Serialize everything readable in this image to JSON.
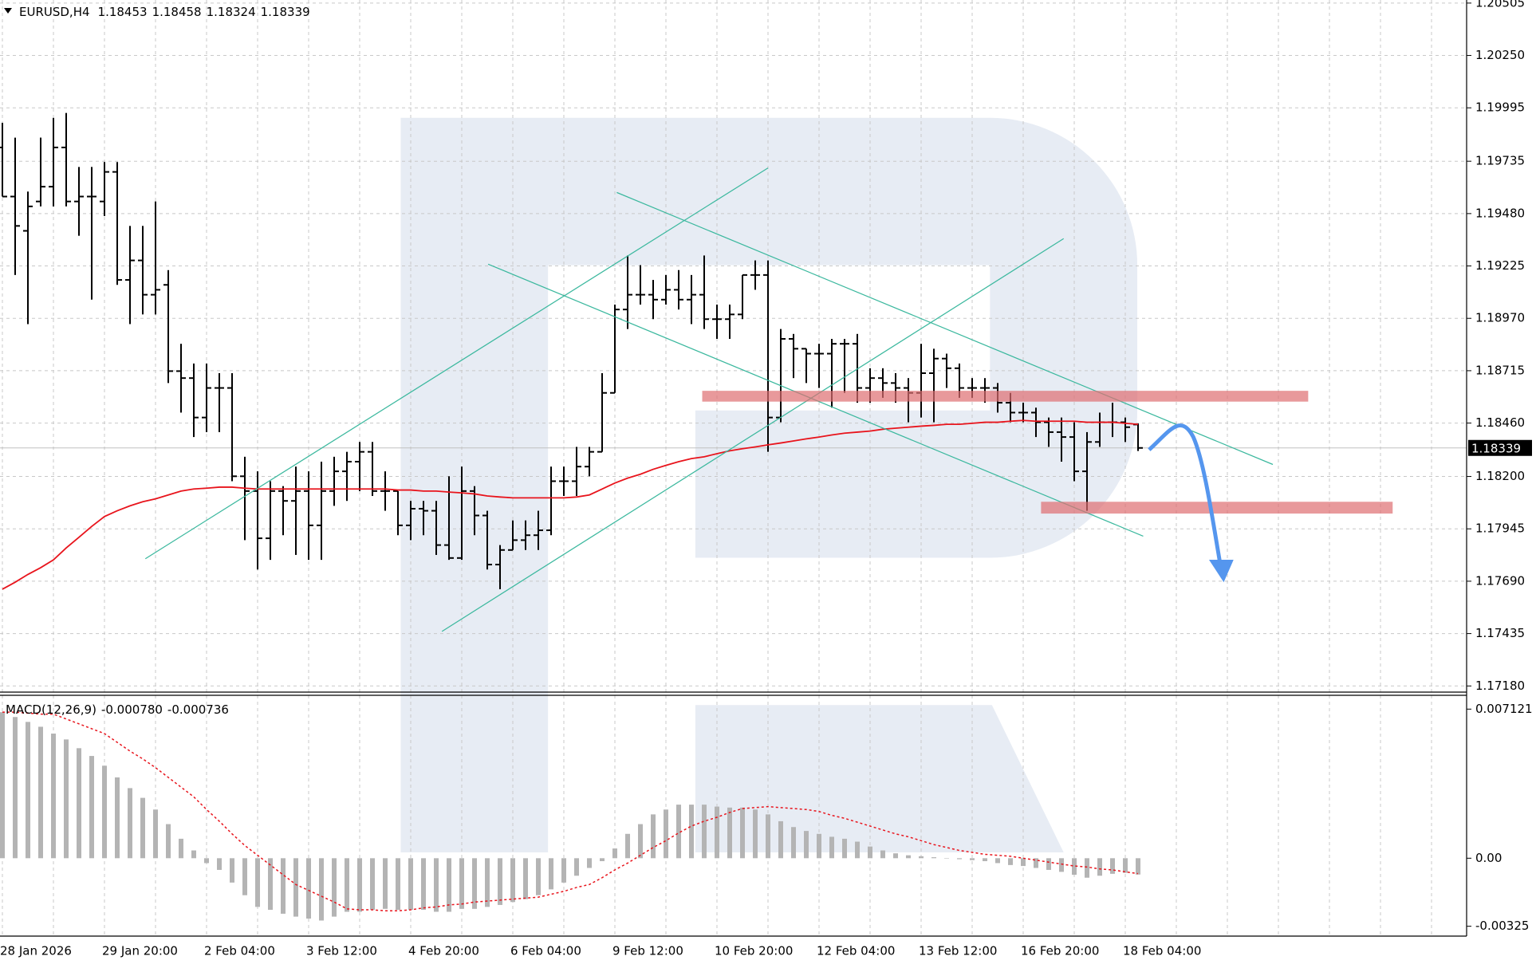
{
  "chart_data": [
    {
      "type": "ohlc",
      "title": "EURUSD,H4",
      "categories": [
        "28 Jan 2026",
        null,
        null,
        null,
        null,
        null,
        null,
        null,
        "29 Jan 20:00",
        null,
        null,
        null,
        null,
        null,
        null,
        null,
        "2 Feb 04:00",
        null,
        null,
        null,
        null,
        null,
        null,
        null,
        "3 Feb 12:00",
        null,
        null,
        null,
        null,
        null,
        null,
        null,
        "4 Feb 20:00",
        null,
        null,
        null,
        null,
        null,
        null,
        null,
        "6 Feb 04:00",
        null,
        null,
        null,
        null,
        null,
        null,
        null,
        "9 Feb 12:00",
        null,
        null,
        null,
        null,
        null,
        null,
        null,
        "10 Feb 20:00",
        null,
        null,
        null,
        null,
        null,
        null,
        null,
        "12 Feb 04:00",
        null,
        null,
        null,
        null,
        null,
        null,
        null,
        "13 Feb 12:00",
        null,
        null,
        null,
        null,
        null,
        null,
        null,
        "16 Feb 20:00",
        null,
        null,
        null,
        null,
        null,
        null,
        null,
        "18 Feb 04:00",
        null
      ],
      "open": [
        1.19802,
        1.19563,
        1.19396,
        1.19539,
        1.19611,
        1.19802,
        1.19539,
        1.19563,
        1.19539,
        1.19683,
        1.19157,
        1.19252,
        1.19085,
        1.19133,
        1.18713,
        1.18679,
        1.18487,
        1.18631,
        1.18631,
        1.18201,
        1.18129,
        1.17899,
        1.18129,
        1.18081,
        1.18129,
        1.17962,
        1.18129,
        1.18225,
        1.18272,
        1.1832,
        1.18129,
        1.18129,
        1.17962,
        1.18043,
        1.18033,
        1.17866,
        1.17803,
        1.18129,
        1.1801,
        1.17771,
        1.17842,
        1.1789,
        1.17914,
        1.17938,
        1.18177,
        1.18177,
        1.18248,
        1.1832,
        1.18607,
        1.19013,
        1.19085,
        1.19085,
        1.19061,
        1.19109,
        1.19061,
        1.19085,
        1.18966,
        1.18966,
        1.18989,
        1.19181,
        1.19181,
        1.18487,
        1.1887,
        1.18822,
        1.18798,
        1.18798,
        1.18846,
        1.18846,
        1.18631,
        1.18679,
        1.18655,
        1.18631,
        1.18607,
        1.18703,
        1.18774,
        1.18727,
        1.18631,
        1.18631,
        1.18631,
        1.18559,
        1.18511,
        1.18511,
        1.18464,
        1.18416,
        1.18392,
        1.18225,
        1.18368,
        1.18464,
        1.18464,
        1.18453
      ],
      "high": [
        1.19922,
        1.1985,
        1.19587,
        1.1985,
        1.19946,
        1.1997,
        1.19707,
        1.19707,
        1.19731,
        1.19731,
        1.1942,
        1.1942,
        1.19539,
        1.19205,
        1.18846,
        1.1875,
        1.1875,
        1.18703,
        1.18703,
        1.18296,
        1.18225,
        1.18177,
        1.18153,
        1.18248,
        1.18225,
        1.18272,
        1.18296,
        1.1832,
        1.18368,
        1.18368,
        1.18225,
        1.18129,
        1.18081,
        1.18081,
        1.18081,
        1.18201,
        1.18248,
        1.18153,
        1.18033,
        1.17866,
        1.17986,
        1.17986,
        1.18033,
        1.18248,
        1.18248,
        1.18344,
        1.18344,
        1.18703,
        1.19037,
        1.19276,
        1.19229,
        1.19157,
        1.19181,
        1.19205,
        1.19181,
        1.19276,
        1.19037,
        1.19037,
        1.19181,
        1.19252,
        1.19252,
        1.18918,
        1.18894,
        1.18822,
        1.18846,
        1.1887,
        1.1887,
        1.18894,
        1.18727,
        1.18727,
        1.18703,
        1.18679,
        1.18846,
        1.18822,
        1.18798,
        1.1875,
        1.18679,
        1.18679,
        1.18655,
        1.18607,
        1.18559,
        1.18535,
        1.18487,
        1.18487,
        1.18464,
        1.18416,
        1.18511,
        1.18559,
        1.18487,
        1.18458
      ],
      "low": [
        1.19563,
        1.19181,
        1.18942,
        1.19515,
        1.19515,
        1.19515,
        1.19372,
        1.19061,
        1.19468,
        1.19133,
        1.18942,
        1.18989,
        1.18989,
        1.18655,
        1.18511,
        1.18392,
        1.18416,
        1.18416,
        1.18177,
        1.1789,
        1.17747,
        1.17794,
        1.17914,
        1.17818,
        1.17794,
        1.17794,
        1.18057,
        1.18081,
        1.18129,
        1.18105,
        1.18033,
        1.17914,
        1.1789,
        1.17914,
        1.17818,
        1.17794,
        1.17794,
        1.17914,
        1.17747,
        1.17651,
        1.17842,
        1.17842,
        1.17842,
        1.17914,
        1.18105,
        1.18105,
        1.18201,
        1.1832,
        1.18607,
        1.18918,
        1.19037,
        1.18966,
        1.19037,
        1.19013,
        1.18942,
        1.18918,
        1.1887,
        1.1887,
        1.18966,
        1.19109,
        1.1832,
        1.18464,
        1.18679,
        1.18655,
        1.18631,
        1.18535,
        1.18607,
        1.18559,
        1.18559,
        1.18583,
        1.18559,
        1.18464,
        1.18487,
        1.18464,
        1.18631,
        1.18583,
        1.18583,
        1.18559,
        1.18511,
        1.18464,
        1.18464,
        1.18392,
        1.18344,
        1.18272,
        1.18177,
        1.18033,
        1.18344,
        1.18392,
        1.18368,
        1.18324
      ],
      "close": [
        1.19563,
        1.1942,
        1.19515,
        1.19611,
        1.19802,
        1.19539,
        1.19563,
        1.19563,
        1.19683,
        1.19157,
        1.19252,
        1.19085,
        1.19109,
        1.18713,
        1.18679,
        1.18487,
        1.18631,
        1.18631,
        1.18201,
        1.18129,
        1.17899,
        1.18129,
        1.18081,
        1.18129,
        1.17962,
        1.18129,
        1.18225,
        1.18272,
        1.1832,
        1.18129,
        1.18129,
        1.17962,
        1.18043,
        1.18033,
        1.17866,
        1.17803,
        1.18129,
        1.1801,
        1.17771,
        1.17842,
        1.1789,
        1.17914,
        1.17938,
        1.18177,
        1.18177,
        1.18248,
        1.1832,
        1.18607,
        1.19013,
        1.19085,
        1.19085,
        1.19061,
        1.19109,
        1.19061,
        1.19085,
        1.18966,
        1.18966,
        1.18989,
        1.19181,
        1.19181,
        1.18487,
        1.1887,
        1.18822,
        1.18798,
        1.18798,
        1.18846,
        1.18846,
        1.18631,
        1.18679,
        1.18655,
        1.18631,
        1.18607,
        1.18703,
        1.18774,
        1.18727,
        1.18631,
        1.18631,
        1.18631,
        1.18559,
        1.18511,
        1.18511,
        1.18464,
        1.18416,
        1.18392,
        1.18225,
        1.18368,
        1.18464,
        1.18464,
        1.1844,
        1.18339
      ],
      "bar_color": "#000000",
      "moving_average": {
        "color": "#e8141c",
        "values": [
          1.17651,
          1.17685,
          1.17723,
          1.17756,
          1.17794,
          1.17852,
          1.17904,
          1.17957,
          1.18005,
          1.18033,
          1.18057,
          1.18077,
          1.18091,
          1.1811,
          1.18129,
          1.18139,
          1.18143,
          1.18148,
          1.18148,
          1.18143,
          1.18139,
          1.18139,
          1.18139,
          1.18139,
          1.18139,
          1.18139,
          1.18139,
          1.18139,
          1.18139,
          1.18139,
          1.18139,
          1.18134,
          1.18134,
          1.18129,
          1.18129,
          1.18124,
          1.1812,
          1.18115,
          1.18105,
          1.181,
          1.18096,
          1.18096,
          1.18096,
          1.18096,
          1.18096,
          1.181,
          1.1811,
          1.18139,
          1.18168,
          1.18192,
          1.18211,
          1.18235,
          1.18254,
          1.18272,
          1.18287,
          1.18296,
          1.18311,
          1.18325,
          1.18335,
          1.18344,
          1.18354,
          1.18363,
          1.18373,
          1.18383,
          1.18392,
          1.18402,
          1.18411,
          1.18416,
          1.18421,
          1.1843,
          1.18435,
          1.1844,
          1.18445,
          1.18449,
          1.18454,
          1.18454,
          1.18459,
          1.18464,
          1.18464,
          1.18469,
          1.18473,
          1.18469,
          1.18469,
          1.18469,
          1.18469,
          1.18464,
          1.18464,
          1.18464,
          1.18459,
          1.18454
        ]
      },
      "ylim": [
        1.1715,
        1.2052
      ],
      "yticks": [
        1.20505,
        {
          "value": 1.2025,
          "label": "1.20250"
        },
        1.19995,
        1.19735,
        {
          "value": 1.1948,
          "label": "1.19480"
        },
        1.19225,
        {
          "value": 1.1897,
          "label": "1.18970"
        },
        1.18715,
        {
          "value": 1.1846,
          "label": "1.18460"
        },
        {
          "value": 1.182,
          "label": "1.18200"
        },
        1.17945,
        {
          "value": 1.1769,
          "label": "1.17690"
        },
        1.17435,
        {
          "value": 1.1718,
          "label": "1.17180"
        }
      ],
      "grid": true
    },
    {
      "type": "macd",
      "title": "MACD(12,26,9)",
      "histogram": {
        "color": "#b4b4b4",
        "label": "-0.000780",
        "values": [
          0.006975,
          0.006743,
          0.00651,
          0.006278,
          0.005952,
          0.005673,
          0.005255,
          0.004883,
          0.004418,
          0.00386,
          0.003348,
          0.002883,
          0.002325,
          0.001628,
          0.00093,
          0.000372,
          -0.000233,
          -0.000558,
          -0.001163,
          -0.001767,
          -0.002325,
          -0.002465,
          -0.002651,
          -0.00279,
          -0.002883,
          -0.002976,
          -0.00279,
          -0.002558,
          -0.002558,
          -0.002465,
          -0.002418,
          -0.002465,
          -0.002465,
          -0.002465,
          -0.002558,
          -0.002558,
          -0.002418,
          -0.002418,
          -0.002325,
          -0.002232,
          -0.002093,
          -0.001953,
          -0.001767,
          -0.001488,
          -0.001163,
          -0.000837,
          -0.000465,
          -0.00014,
          0.000465,
          0.001163,
          0.001628,
          0.002093,
          0.002325,
          0.002558,
          0.002558,
          0.002558,
          0.002465,
          0.002418,
          0.002418,
          0.002325,
          0.002093,
          0.001767,
          0.001488,
          0.001302,
          0.001163,
          0.001023,
          0.00093,
          0.000791,
          0.000558,
          0.000372,
          0.000233,
          0.00014,
          9.3e-05,
          4.7e-05,
          0,
          -4.7e-05,
          -9.3e-05,
          -0.00014,
          -0.000233,
          -0.000326,
          -0.000372,
          -0.000465,
          -0.000558,
          -0.000651,
          -0.000791,
          -0.00093,
          -0.000837,
          -0.000744,
          -0.000698,
          -0.00078
        ]
      },
      "signal": {
        "color": "#e8141c",
        "label": "-0.000736",
        "values": [
          0.006975,
          0.006975,
          0.006929,
          0.006882,
          0.006882,
          0.00665,
          0.006417,
          0.006185,
          0.005952,
          0.005534,
          0.005115,
          0.004743,
          0.004325,
          0.00386,
          0.003395,
          0.00293,
          0.002325,
          0.001767,
          0.001163,
          0.000605,
          0.00014,
          -0.000326,
          -0.000791,
          -0.001256,
          -0.001535,
          -0.001814,
          -0.002093,
          -0.002418,
          -0.002465,
          -0.002465,
          -0.002511,
          -0.002511,
          -0.002465,
          -0.002372,
          -0.002325,
          -0.002232,
          -0.002186,
          -0.002093,
          -0.002046,
          -0.002,
          -0.001953,
          -0.001907,
          -0.00186,
          -0.001721,
          -0.001581,
          -0.001395,
          -0.001256,
          -0.00093,
          -0.000558,
          -0.000233,
          0.00014,
          0.000512,
          0.000837,
          0.001209,
          0.001535,
          0.001767,
          0.001953,
          0.002186,
          0.002372,
          0.002418,
          0.002465,
          0.002418,
          0.002372,
          0.002325,
          0.002232,
          0.002046,
          0.001907,
          0.001721,
          0.001535,
          0.001349,
          0.001163,
          0.001023,
          0.000837,
          0.000651,
          0.000512,
          0.000372,
          0.000279,
          0.000186,
          0.00014,
          9.3e-05,
          0,
          -9.3e-05,
          -0.000186,
          -0.000279,
          -0.000372,
          -0.000419,
          -0.000512,
          -0.000558,
          -0.000651,
          -0.000736
        ]
      },
      "ylim": [
        -0.00372,
        0.00759
      ],
      "yticks": [
        0.007121,
        {
          "value": 0,
          "label": "0.00"
        },
        -0.00325
      ]
    }
  ]
}
